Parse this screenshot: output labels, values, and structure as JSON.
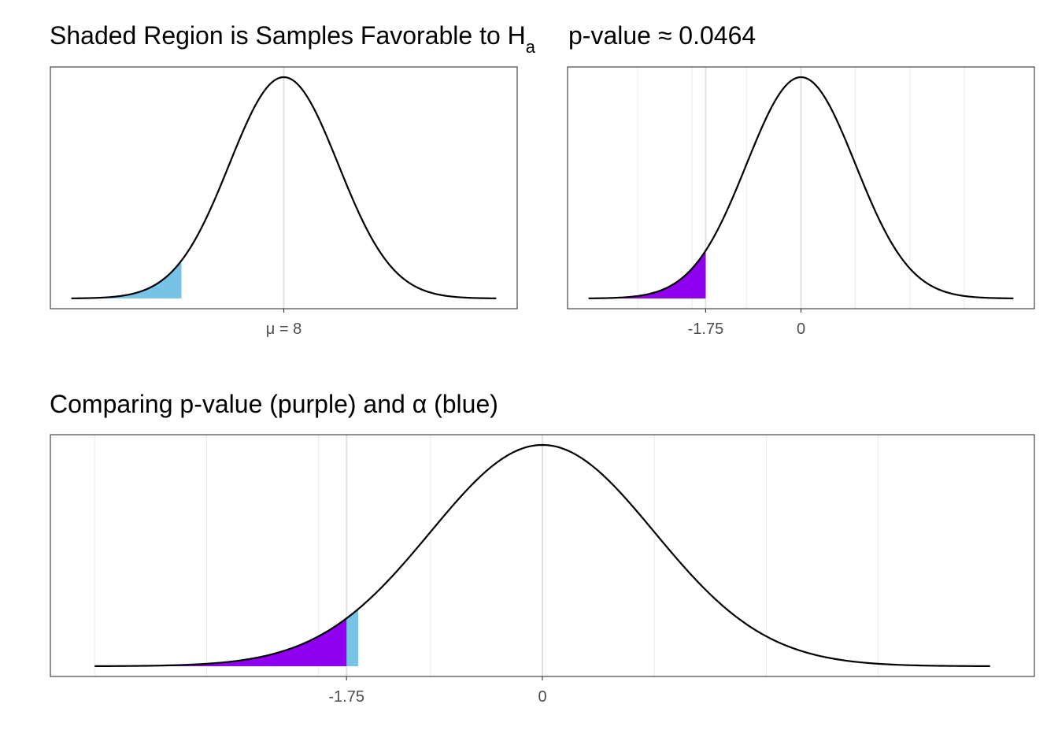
{
  "chart_data": [
    {
      "type": "area",
      "title": "Shaded Region is Samples Favorable to H",
      "title_subscript": "a",
      "xlim": [
        -4,
        4
      ],
      "ylim": [
        0,
        0.4
      ],
      "grid": false,
      "curve": "normal density",
      "shaded_region": {
        "from": -3.6,
        "to": -1.88,
        "color": "#77C3E6"
      },
      "x_ticks": [
        {
          "value": 0,
          "label": "μ = 8"
        }
      ]
    },
    {
      "type": "area",
      "title": "p-value ≈ 0.0464",
      "xlim": [
        -4,
        4
      ],
      "ylim": [
        0,
        0.4
      ],
      "grid": true,
      "curve": "normal density",
      "shaded_region": {
        "from": -3.6,
        "to": -1.75,
        "color": "#8E00EE"
      },
      "x_ticks": [
        {
          "value": -1.75,
          "label": "-1.75"
        },
        {
          "value": 0,
          "label": "0"
        }
      ]
    },
    {
      "type": "area",
      "title": "Comparing p-value (purple) and α (blue)",
      "xlim": [
        -4,
        4
      ],
      "ylim": [
        0,
        0.4
      ],
      "grid": true,
      "curve": "normal density",
      "shaded_regions": [
        {
          "from": -4,
          "to": -1.645,
          "color": "#77C3E6"
        },
        {
          "from": -4,
          "to": -1.75,
          "color": "#8E00EE"
        }
      ],
      "x_ticks": [
        {
          "value": -1.75,
          "label": "-1.75"
        },
        {
          "value": 0,
          "label": "0"
        }
      ]
    }
  ]
}
